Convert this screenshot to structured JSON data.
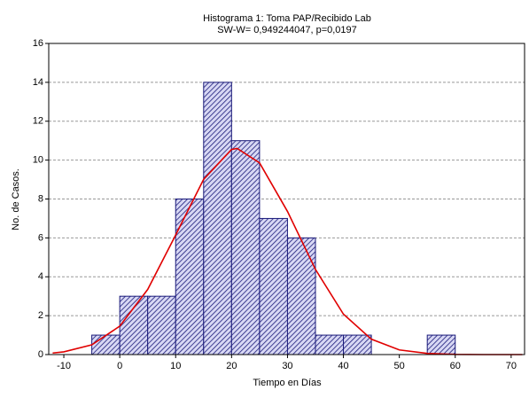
{
  "chart_data": {
    "type": "histogram",
    "title": "Histograma 1: Toma PAP/Recibido Lab",
    "subtitle": "SW-W= 0,949244047, p=0,0197",
    "x_label": "Tiempo en Días",
    "y_label": "No. de Casos.",
    "bins": [
      -5,
      0,
      5,
      10,
      15,
      20,
      25,
      30,
      35,
      40,
      45,
      50,
      55,
      60
    ],
    "values": [
      1,
      3,
      3,
      8,
      14,
      11,
      7,
      6,
      1,
      1,
      0,
      0,
      1
    ],
    "color": "#1a1a7a",
    "fit": {
      "color": "#e00000",
      "x": [
        -12,
        -10,
        -5,
        0,
        5,
        10,
        15,
        20,
        21,
        25,
        30,
        35,
        40,
        45,
        50,
        55,
        60,
        65,
        70,
        72
      ],
      "values": [
        0.08,
        0.14,
        0.5,
        1.46,
        3.35,
        6.15,
        9.01,
        10.55,
        10.6,
        9.86,
        7.36,
        4.38,
        2.08,
        0.79,
        0.24,
        0.06,
        0.01,
        0,
        0,
        0
      ]
    },
    "xlim": [
      -12.7,
      72.4
    ],
    "xticks": [
      -10,
      0,
      10,
      20,
      30,
      40,
      50,
      60,
      70
    ],
    "ylim": [
      0,
      16
    ],
    "yticks": [
      0,
      2,
      4,
      6,
      8,
      10,
      12,
      14,
      16
    ],
    "grid": true
  }
}
